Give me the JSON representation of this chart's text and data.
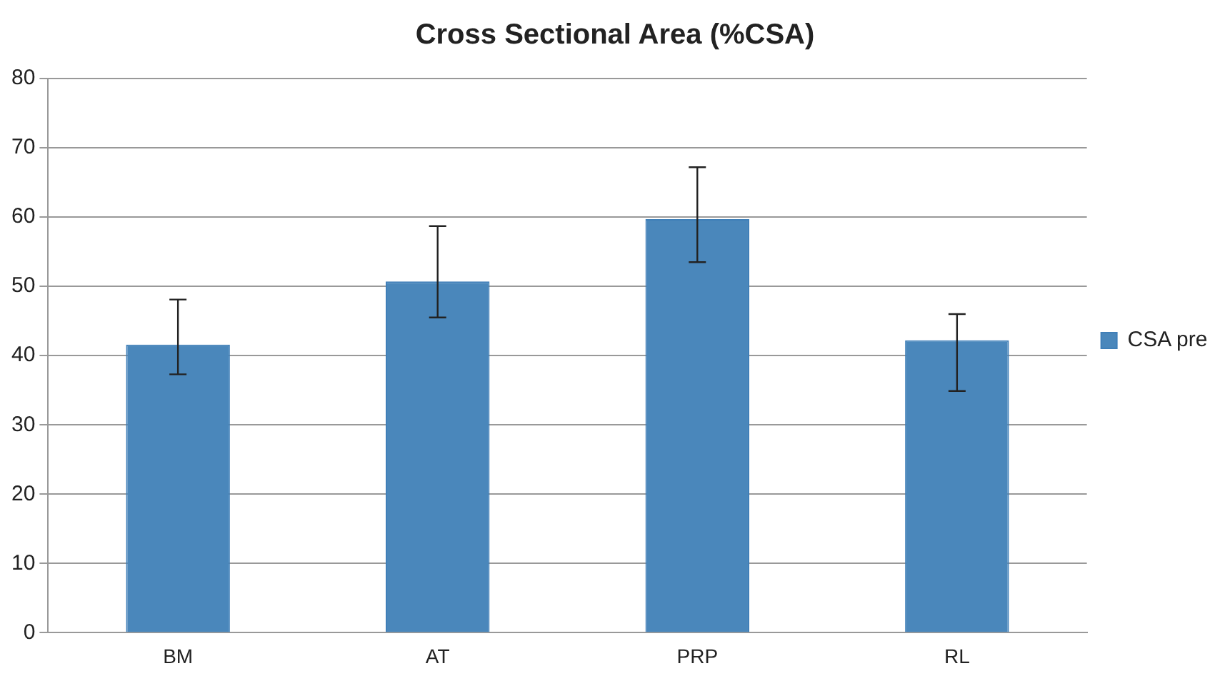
{
  "chart_data": {
    "type": "bar",
    "title": "Cross Sectional Area (%CSA)",
    "categories": [
      "BM",
      "AT",
      "PRP",
      "RL"
    ],
    "series": [
      {
        "name": "CSA pre",
        "color": "#4a87bb",
        "values": [
          41.6,
          50.7,
          59.7,
          42.2
        ],
        "errors": [
          [
            37.3,
            48.1
          ],
          [
            45.5,
            58.7
          ],
          [
            53.5,
            67.2
          ],
          [
            34.9,
            46.0
          ]
        ]
      }
    ],
    "ylim": [
      0,
      80
    ],
    "yticks": [
      0,
      10,
      20,
      30,
      40,
      50,
      60,
      70,
      80
    ],
    "grid": "y",
    "legend": "right"
  }
}
